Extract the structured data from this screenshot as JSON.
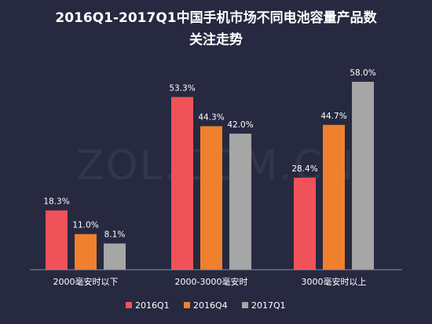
{
  "chart_data": {
    "type": "bar",
    "title": "2016Q1-2017Q1中国手机市场不同电池容量产品数",
    "subtitle": "关注走势",
    "categories": [
      "2000毫安时以下",
      "2000-3000毫安时",
      "3000毫安时以上"
    ],
    "series": [
      {
        "name": "2016Q1",
        "color": "#f0525a",
        "values": [
          18.3,
          53.3,
          28.4
        ],
        "labels": [
          "18.3%",
          "53.3%",
          "28.4%"
        ]
      },
      {
        "name": "2016Q4",
        "color": "#f0802e",
        "values": [
          11.0,
          44.3,
          44.7
        ],
        "labels": [
          "11.0%",
          "44.3%",
          "44.7%"
        ]
      },
      {
        "name": "2017Q1",
        "color": "#a6a6a6",
        "values": [
          8.1,
          42.0,
          58.0
        ],
        "labels": [
          "8.1%",
          "42.0%",
          "58.0%"
        ]
      }
    ],
    "ylim": [
      0,
      58
    ],
    "grid": false,
    "legend": "bottom",
    "watermark": "ZOL.COM.CN"
  }
}
